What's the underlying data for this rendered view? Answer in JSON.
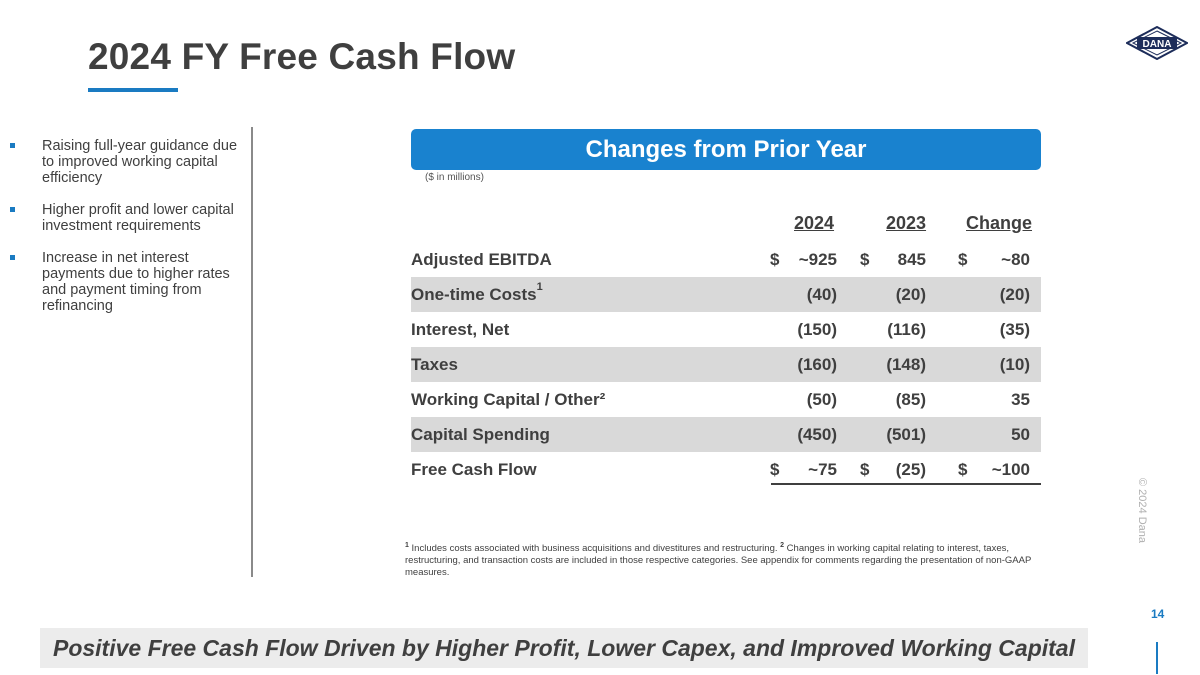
{
  "header": {
    "title": "2024 FY Free Cash Flow",
    "logo_text": "DANA"
  },
  "bullets": [
    "Raising full-year guidance due to improved working capital efficiency",
    "Higher profit and lower capital investment requirements",
    "Increase in net interest payments due to higher rates and payment timing from refinancing"
  ],
  "banner": "Changes from Prior Year",
  "units": "($ in millions)",
  "table": {
    "columns": [
      "2024",
      "2023",
      "Change"
    ],
    "rows": [
      {
        "label": "Adjusted EBITDA",
        "sup": "",
        "d1": "$",
        "v1": "~925",
        "d2": "$",
        "v2": "845",
        "d3": "$",
        "v3": "~80"
      },
      {
        "label": "One-time Costs",
        "sup": "1",
        "d1": "",
        "v1": "(40)",
        "d2": "",
        "v2": "(20)",
        "d3": "",
        "v3": "(20)"
      },
      {
        "label": "Interest, Net",
        "sup": "",
        "d1": "",
        "v1": "(150)",
        "d2": "",
        "v2": "(116)",
        "d3": "",
        "v3": "(35)"
      },
      {
        "label": "Taxes",
        "sup": "",
        "d1": "",
        "v1": "(160)",
        "d2": "",
        "v2": "(148)",
        "d3": "",
        "v3": "(10)"
      },
      {
        "label": "Working Capital / Other²",
        "sup": "",
        "d1": "",
        "v1": "(50)",
        "d2": "",
        "v2": "(85)",
        "d3": "",
        "v3": "35"
      },
      {
        "label": "Capital Spending",
        "sup": "",
        "d1": "",
        "v1": "(450)",
        "d2": "",
        "v2": "(501)",
        "d3": "",
        "v3": "50"
      },
      {
        "label": "Free Cash Flow",
        "sup": "",
        "d1": "$",
        "v1": "~75",
        "d2": "$",
        "v2": "(25)",
        "d3": "$",
        "v3": "~100"
      }
    ]
  },
  "footnote": {
    "sup1": "1",
    "text1": " Includes costs associated with business acquisitions and divestitures and restructuring. ",
    "sup2": "2",
    "text2": " Changes in working capital relating to interest, taxes, restructuring, and transaction costs are included in those respective categories.  See appendix for comments regarding the presentation of non-GAAP measures."
  },
  "copyright": "© 2024 Dana",
  "page_number": "14",
  "footer": "Positive Free Cash Flow Driven by Higher Profit, Lower Capex, and Improved Working Capital",
  "colors": {
    "accent": "#1a7bc2",
    "banner": "#1982cf",
    "shade": "#d9d9d9"
  }
}
